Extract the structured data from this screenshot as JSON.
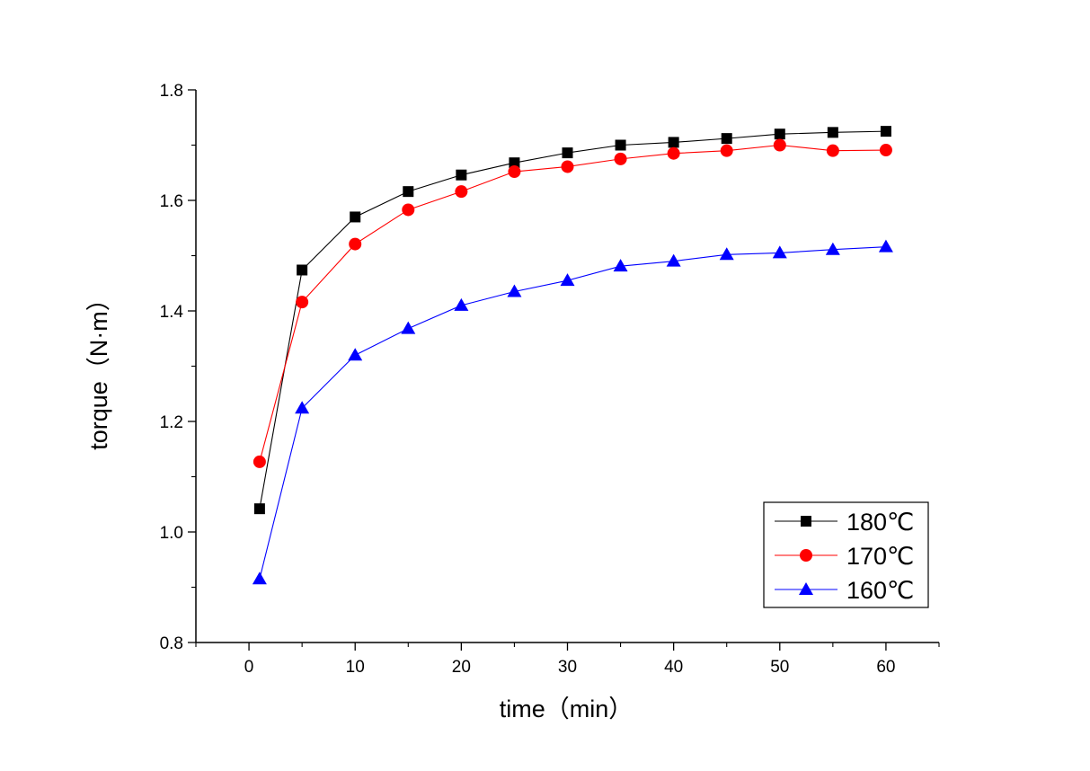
{
  "chart_data": {
    "type": "line",
    "title": "",
    "xlabel": "time（min）",
    "ylabel": "torque（N·m）",
    "xlim": [
      -5,
      65
    ],
    "ylim": [
      0.8,
      1.8
    ],
    "xticks": [
      0,
      10,
      20,
      30,
      40,
      50,
      60
    ],
    "xtick_labels": [
      "0",
      "10",
      "20",
      "30",
      "40",
      "50",
      "60"
    ],
    "yticks": [
      0.8,
      1.0,
      1.2,
      1.4,
      1.6,
      1.8
    ],
    "ytick_labels": [
      "0.8",
      "1.0",
      "1.2",
      "1.4",
      "1.6",
      "1.8"
    ],
    "grid": false,
    "legend_position": "bottom-right",
    "x": [
      1,
      5,
      10,
      15,
      20,
      25,
      30,
      35,
      40,
      45,
      50,
      55,
      60
    ],
    "series": [
      {
        "name": "180℃",
        "marker": "square",
        "color": "#000000",
        "values": [
          1.042,
          1.474,
          1.57,
          1.616,
          1.646,
          1.668,
          1.686,
          1.7,
          1.705,
          1.712,
          1.72,
          1.723,
          1.725
        ]
      },
      {
        "name": "170℃",
        "marker": "circle",
        "color": "#ff0000",
        "values": [
          1.127,
          1.416,
          1.521,
          1.583,
          1.616,
          1.652,
          1.661,
          1.675,
          1.685,
          1.69,
          1.7,
          1.69,
          1.691
        ]
      },
      {
        "name": "160℃",
        "marker": "triangle",
        "color": "#0000ff",
        "values": [
          0.915,
          1.224,
          1.32,
          1.368,
          1.41,
          1.435,
          1.455,
          1.481,
          1.49,
          1.502,
          1.505,
          1.511,
          1.516
        ]
      }
    ]
  }
}
